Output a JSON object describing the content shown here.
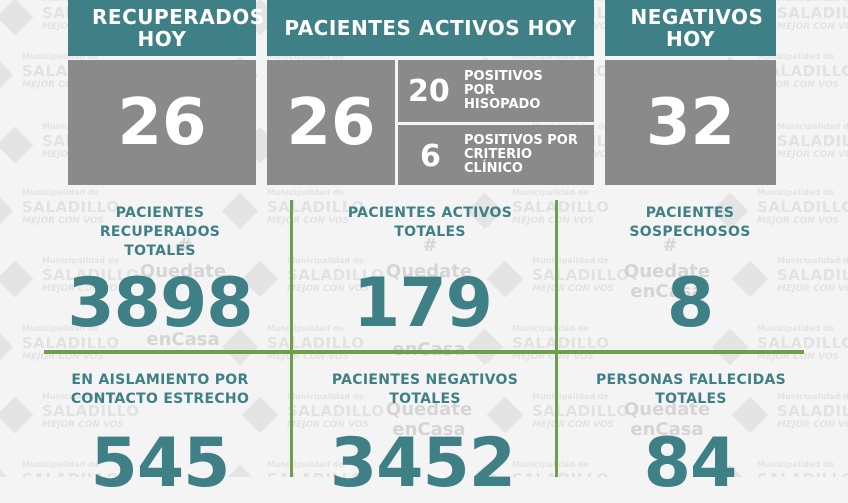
{
  "watermark": {
    "line1": "Municipalidad de",
    "line2": "SALADILLO",
    "line3": "MEJOR CON VOS",
    "hashtag": "#",
    "slogan1": "Quedate",
    "slogan2": "enCasa"
  },
  "top": {
    "recovered_today": {
      "label": "RECUPERADOS HOY",
      "value": "26"
    },
    "active_today": {
      "label": "PACIENTES ACTIVOS HOY",
      "value": "26",
      "swab": {
        "value": "20",
        "label": "POSITIVOS POR HISOPADO"
      },
      "clinical": {
        "value": "6",
        "label": "POSITIVOS POR CRITERIO CLÍNICO"
      }
    },
    "negative_today": {
      "label": "NEGATIVOS HOY",
      "value": "32"
    }
  },
  "stats": [
    {
      "label": "PACIENTES RECUPERADOS TOTALES",
      "value": "3898"
    },
    {
      "label": "PACIENTES ACTIVOS TOTALES",
      "value": "179"
    },
    {
      "label": "PACIENTES SOSPECHOSOS",
      "value": "8"
    },
    {
      "label": "EN AISLAMIENTO POR CONTACTO ESTRECHO",
      "value": "545"
    },
    {
      "label": "PACIENTES NEGATIVOS TOTALES",
      "value": "3452"
    },
    {
      "label": "PERSONAS FALLECIDAS TOTALES",
      "value": "84"
    }
  ],
  "colors": {
    "teal": "#3f7f86",
    "gray": "#8a8a8a",
    "green": "#6ea04a"
  }
}
